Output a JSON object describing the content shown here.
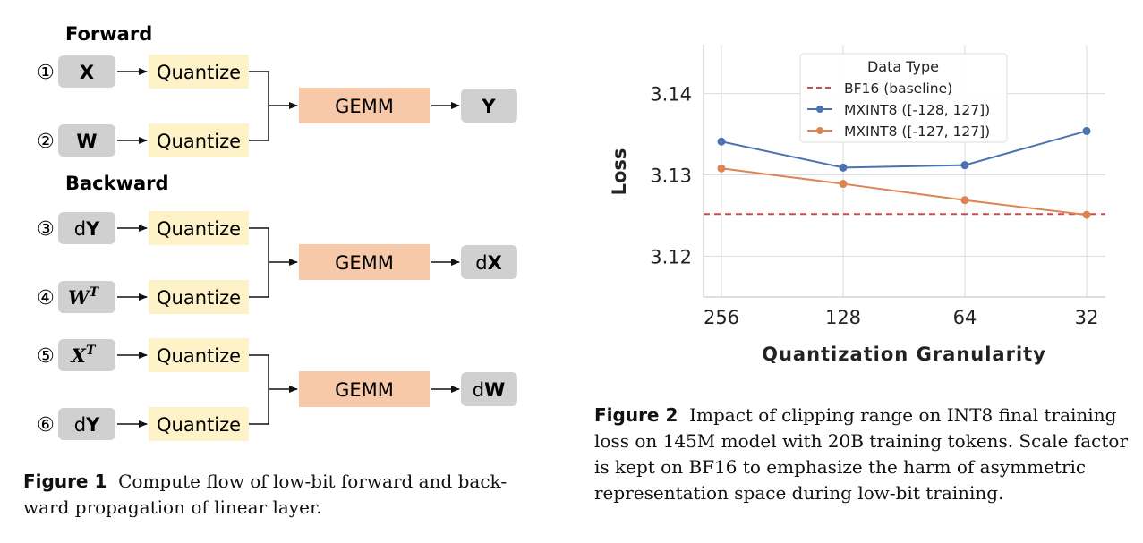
{
  "figure1": {
    "forward_title": "Forward",
    "backward_title": "Backward",
    "quantize_label": "Quantize",
    "gemm_label": "GEMM",
    "rows": [
      {
        "num": "①",
        "input_pre": "",
        "input_main": "X",
        "input_sup": ""
      },
      {
        "num": "②",
        "input_pre": "",
        "input_main": "W",
        "input_sup": ""
      },
      {
        "num": "③",
        "input_pre": "d",
        "input_main": "Y",
        "input_sup": ""
      },
      {
        "num": "④",
        "input_pre": "",
        "input_main": "W",
        "input_sup": "T"
      },
      {
        "num": "⑤",
        "input_pre": "",
        "input_main": "X",
        "input_sup": "T"
      },
      {
        "num": "⑥",
        "input_pre": "d",
        "input_main": "Y",
        "input_sup": ""
      }
    ],
    "outputs": [
      {
        "pre": "",
        "main": "Y"
      },
      {
        "pre": "d",
        "main": "X"
      },
      {
        "pre": "d",
        "main": "W"
      }
    ],
    "caption_label": "Figure 1",
    "caption_line1": "Compute flow of low-bit forward and back-",
    "caption_line2": "ward propagation of linear layer."
  },
  "figure2": {
    "caption_label": "Figure 2",
    "caption_line1": "Impact of clipping range on INT8 final training",
    "caption_line2": "loss on 145M model with 20B training tokens. Scale factor",
    "caption_line3": "is kept on BF16 to emphasize the harm of asymmetric",
    "caption_line4": "representation space during low-bit training."
  },
  "chart_data": {
    "type": "line",
    "xlabel": "Quantization Granularity",
    "ylabel": "Loss",
    "categories": [
      "256",
      "128",
      "64",
      "32"
    ],
    "ylim": [
      3.115,
      3.146
    ],
    "yticks": [
      3.12,
      3.13,
      3.14
    ],
    "ytick_labels": [
      "3.12",
      "3.13",
      "3.14"
    ],
    "grid": true,
    "legend_title": "Data Type",
    "legend_position": "top-center",
    "baseline": {
      "name": "BF16 (baseline)",
      "value": 3.1252,
      "color": "#c44e52",
      "style": "dashed"
    },
    "series": [
      {
        "name": "MXINT8 ([-128, 127])",
        "values": [
          3.1341,
          3.1309,
          3.1312,
          3.1354
        ],
        "color": "#4c72b0"
      },
      {
        "name": "MXINT8 ([-127, 127])",
        "values": [
          3.1308,
          3.1289,
          3.1269,
          3.1251
        ],
        "color": "#dd8452"
      }
    ]
  }
}
